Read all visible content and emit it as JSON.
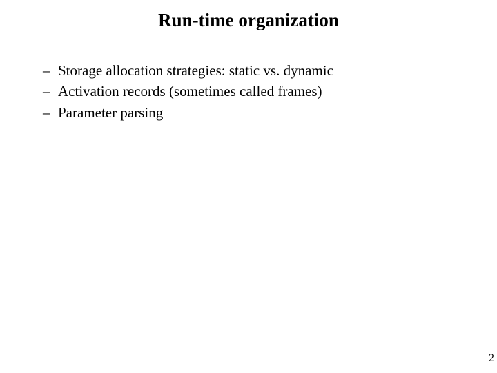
{
  "title": "Run-time organization",
  "bullets": [
    "Storage allocation strategies: static vs. dynamic",
    "Activation records (sometimes called frames)",
    "Parameter parsing"
  ],
  "dash": "–",
  "page_number": "2",
  "colors": {
    "background": "#ffffff",
    "text": "#000000"
  },
  "typography": {
    "title_fontsize": 27,
    "title_weight": "bold",
    "body_fontsize": 21,
    "font_family": "Times New Roman"
  }
}
